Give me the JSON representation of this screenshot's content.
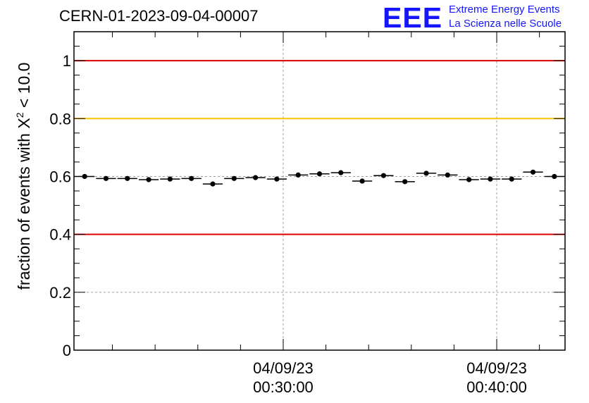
{
  "header": {
    "run_id": "CERN-01-2023-09-04-00007",
    "logo_mark": "EEE",
    "logo_line1": "Extreme Energy Events",
    "logo_line2": "La Scienza nelle Scuole"
  },
  "colors": {
    "upper_limit": "#e00000",
    "lower_limit": "#e00000",
    "target": "#ffc000",
    "data": "#000000",
    "grid": "#a0a0a0",
    "logo": "#1515ff"
  },
  "chart_data": {
    "type": "scatter",
    "ylabel_prefix": "fraction of events with X",
    "ylabel_exp": "2",
    "ylabel_suffix": " < 10.0",
    "ylim": [
      0,
      1.1
    ],
    "yticks": [
      0,
      0.2,
      0.4,
      0.6,
      0.8,
      1
    ],
    "ytick_labels": [
      "0",
      "0.2",
      "0.4",
      "0.6",
      "0.8",
      "1"
    ],
    "xlim_minutes": [
      20.2,
      43.2
    ],
    "xticks": [
      {
        "minutes": 30,
        "date": "04/09/23",
        "time": "00:30:00"
      },
      {
        "minutes": 40,
        "date": "04/09/23",
        "time": "00:40:00"
      }
    ],
    "grid": "dashed",
    "reference_lines": [
      {
        "y": 1.0,
        "color": "#e00000"
      },
      {
        "y": 0.8,
        "color": "#ffc000"
      },
      {
        "y": 0.4,
        "color": "#e00000"
      }
    ],
    "bin_width_minutes": 1,
    "x_minutes": [
      20.7,
      21.7,
      22.7,
      23.7,
      24.7,
      25.7,
      26.7,
      27.7,
      28.7,
      29.7,
      30.7,
      31.7,
      32.7,
      33.7,
      34.7,
      35.7,
      36.7,
      37.7,
      38.7,
      39.7,
      40.7,
      41.7,
      42.7
    ],
    "values": [
      0.6,
      0.593,
      0.593,
      0.589,
      0.591,
      0.593,
      0.574,
      0.593,
      0.596,
      0.591,
      0.605,
      0.609,
      0.613,
      0.584,
      0.603,
      0.582,
      0.611,
      0.605,
      0.589,
      0.591,
      0.591,
      0.615,
      0.6
    ]
  }
}
